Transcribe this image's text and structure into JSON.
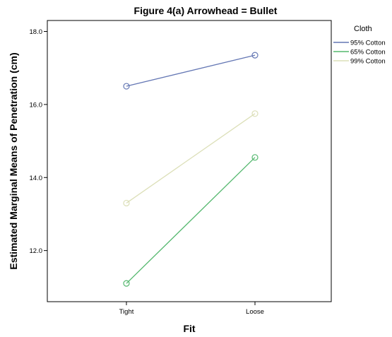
{
  "chart_data": {
    "type": "line",
    "title": "Figure 4(a) Arrowhead = Bullet",
    "xlabel": "Fit",
    "ylabel": "Estimated Marginal Means of Penetration (cm)",
    "categories": [
      "Tight",
      "Loose"
    ],
    "ylim": [
      10.6,
      18.3
    ],
    "yticks": [
      12.0,
      14.0,
      16.0,
      18.0
    ],
    "ytick_labels": [
      "12.0",
      "14.0",
      "16.0",
      "18.0"
    ],
    "grid": false,
    "legend_title": "Cloth",
    "legend_position": "right",
    "series": [
      {
        "name": "95% Cotton",
        "values": [
          16.5,
          17.35
        ],
        "color": "#6477b4"
      },
      {
        "name": "65% Cotton",
        "values": [
          11.1,
          14.55
        ],
        "color": "#55b86f"
      },
      {
        "name": "99% Cotton",
        "values": [
          13.3,
          15.75
        ],
        "color": "#dcdfb8"
      }
    ]
  }
}
